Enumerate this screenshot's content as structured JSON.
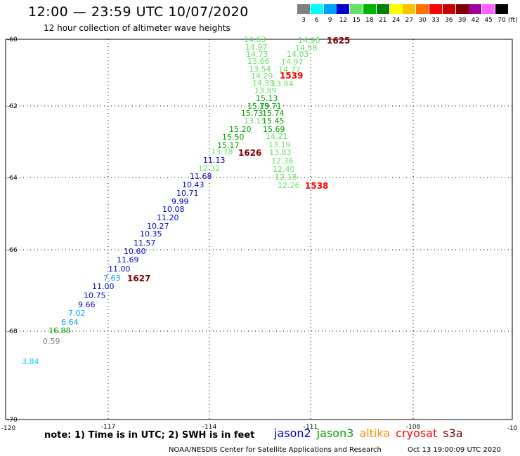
{
  "header": {
    "title": "12:00 — 23:59 UTC 10/07/2020",
    "subtitle": "12 hour collection of altimeter wave heights"
  },
  "legend": {
    "unit": "(ft)",
    "bins": [
      {
        "label": "3",
        "color": "#808080"
      },
      {
        "label": "6",
        "color": "#00ffff"
      },
      {
        "label": "9",
        "color": "#00a0ff"
      },
      {
        "label": "12",
        "color": "#0000c8"
      },
      {
        "label": "15",
        "color": "#66e066"
      },
      {
        "label": "18",
        "color": "#00b400"
      },
      {
        "label": "21",
        "color": "#008000"
      },
      {
        "label": "24",
        "color": "#ffff00"
      },
      {
        "label": "27",
        "color": "#ffc000"
      },
      {
        "label": "30",
        "color": "#ff7000"
      },
      {
        "label": "33",
        "color": "#ff0000"
      },
      {
        "label": "36",
        "color": "#c80000"
      },
      {
        "label": "39",
        "color": "#800000"
      },
      {
        "label": "42",
        "color": "#a000a0"
      },
      {
        "label": "45",
        "color": "#ff60ff"
      },
      {
        "label": "70",
        "color": "#000000"
      }
    ]
  },
  "axes": {
    "x_ticks": [
      "-120",
      "-117",
      "-114",
      "-111",
      "-108",
      "-10"
    ],
    "y_ticks": [
      "-60",
      "-62",
      "-64",
      "-66",
      "-68",
      "-70"
    ]
  },
  "colors": {
    "jason2": "#0000c8",
    "jason3": "#00a000",
    "altika": "#ff8c00",
    "cryosat": "#ff0000",
    "s3a": "#800000",
    "light_green": "#66e066",
    "cyan": "#00d0ff",
    "gray": "#808080"
  },
  "track_times": [
    {
      "label": "1625",
      "color": "#800000"
    },
    {
      "label": "1539",
      "color": "#ff0000"
    },
    {
      "label": "1626",
      "color": "#800000"
    },
    {
      "label": "1538",
      "color": "#ff0000"
    },
    {
      "label": "1627",
      "color": "#800000"
    }
  ],
  "observations": [
    {
      "v": "14.63",
      "c": "#66e066"
    },
    {
      "v": "14.97",
      "c": "#66e066"
    },
    {
      "v": "14.73",
      "c": "#66e066"
    },
    {
      "v": "13.66",
      "c": "#66e066"
    },
    {
      "v": "13.54",
      "c": "#66e066"
    },
    {
      "v": "14.29",
      "c": "#66e066"
    },
    {
      "v": "14.39",
      "c": "#66e066"
    },
    {
      "v": "13.89",
      "c": "#66e066"
    },
    {
      "v": "15.13",
      "c": "#00a000"
    },
    {
      "v": "15.79",
      "c": "#00a000"
    },
    {
      "v": "15.73",
      "c": "#00a000"
    },
    {
      "v": "13.15",
      "c": "#66e066"
    },
    {
      "v": "15.20",
      "c": "#00a000"
    },
    {
      "v": "15.50",
      "c": "#00a000"
    },
    {
      "v": "15.17",
      "c": "#00a000"
    },
    {
      "v": "13.78",
      "c": "#66e066"
    },
    {
      "v": "11.13",
      "c": "#0000c8"
    },
    {
      "v": "12.32",
      "c": "#66e066"
    },
    {
      "v": "14.96",
      "c": "#66e066"
    },
    {
      "v": "14.58",
      "c": "#66e066"
    },
    {
      "v": "14.03",
      "c": "#66e066"
    },
    {
      "v": "14.97",
      "c": "#66e066"
    },
    {
      "v": "14.77",
      "c": "#66e066"
    },
    {
      "v": "13.84",
      "c": "#66e066"
    },
    {
      "v": "15.71",
      "c": "#00a000"
    },
    {
      "v": "15.74",
      "c": "#00a000"
    },
    {
      "v": "15.45",
      "c": "#00a000"
    },
    {
      "v": "15.69",
      "c": "#00a000"
    },
    {
      "v": "14.21",
      "c": "#66e066"
    },
    {
      "v": "13.19",
      "c": "#66e066"
    },
    {
      "v": "13.83",
      "c": "#66e066"
    },
    {
      "v": "12.36",
      "c": "#66e066"
    },
    {
      "v": "12.40",
      "c": "#66e066"
    },
    {
      "v": "12.18",
      "c": "#66e066"
    },
    {
      "v": "12.26",
      "c": "#66e066"
    },
    {
      "v": "11.68",
      "c": "#0000c8"
    },
    {
      "v": "10.43",
      "c": "#0000c8"
    },
    {
      "v": "10.71",
      "c": "#0000c8"
    },
    {
      "v": "9.99",
      "c": "#0000c8"
    },
    {
      "v": "10.08",
      "c": "#0000c8"
    },
    {
      "v": "11.20",
      "c": "#0000c8"
    },
    {
      "v": "10.27",
      "c": "#0000c8"
    },
    {
      "v": "10.35",
      "c": "#0000c8"
    },
    {
      "v": "11.57",
      "c": "#0000c8"
    },
    {
      "v": "10.60",
      "c": "#0000c8"
    },
    {
      "v": "11.69",
      "c": "#0000c8"
    },
    {
      "v": "11.00",
      "c": "#0000c8"
    },
    {
      "v": "7.63",
      "c": "#00a0ff"
    },
    {
      "v": "11.00",
      "c": "#0000c8"
    },
    {
      "v": "10.75",
      "c": "#0000c8"
    },
    {
      "v": "9.66",
      "c": "#0000c8"
    },
    {
      "v": "7.02",
      "c": "#00a0ff"
    },
    {
      "v": "6.64",
      "c": "#00a0ff"
    },
    {
      "v": "16.88",
      "c": "#00a000"
    },
    {
      "v": "0.59",
      "c": "#808080"
    },
    {
      "v": "3.84",
      "c": "#00d0ff"
    }
  ],
  "footer": {
    "note": "note: 1) Time is in UTC; 2) SWH is in feet",
    "satellites": [
      {
        "name": "jason2",
        "color": "#0000c8"
      },
      {
        "name": "jason3",
        "color": "#00a000"
      },
      {
        "name": "altika",
        "color": "#ff8c00"
      },
      {
        "name": "cryosat",
        "color": "#ff0000"
      },
      {
        "name": "s3a",
        "color": "#800000"
      }
    ],
    "credit": "NOAA/NESDIS Center for Satellite Applications and Research",
    "timestamp": "Oct 13 19:00:09 UTC 2020"
  }
}
